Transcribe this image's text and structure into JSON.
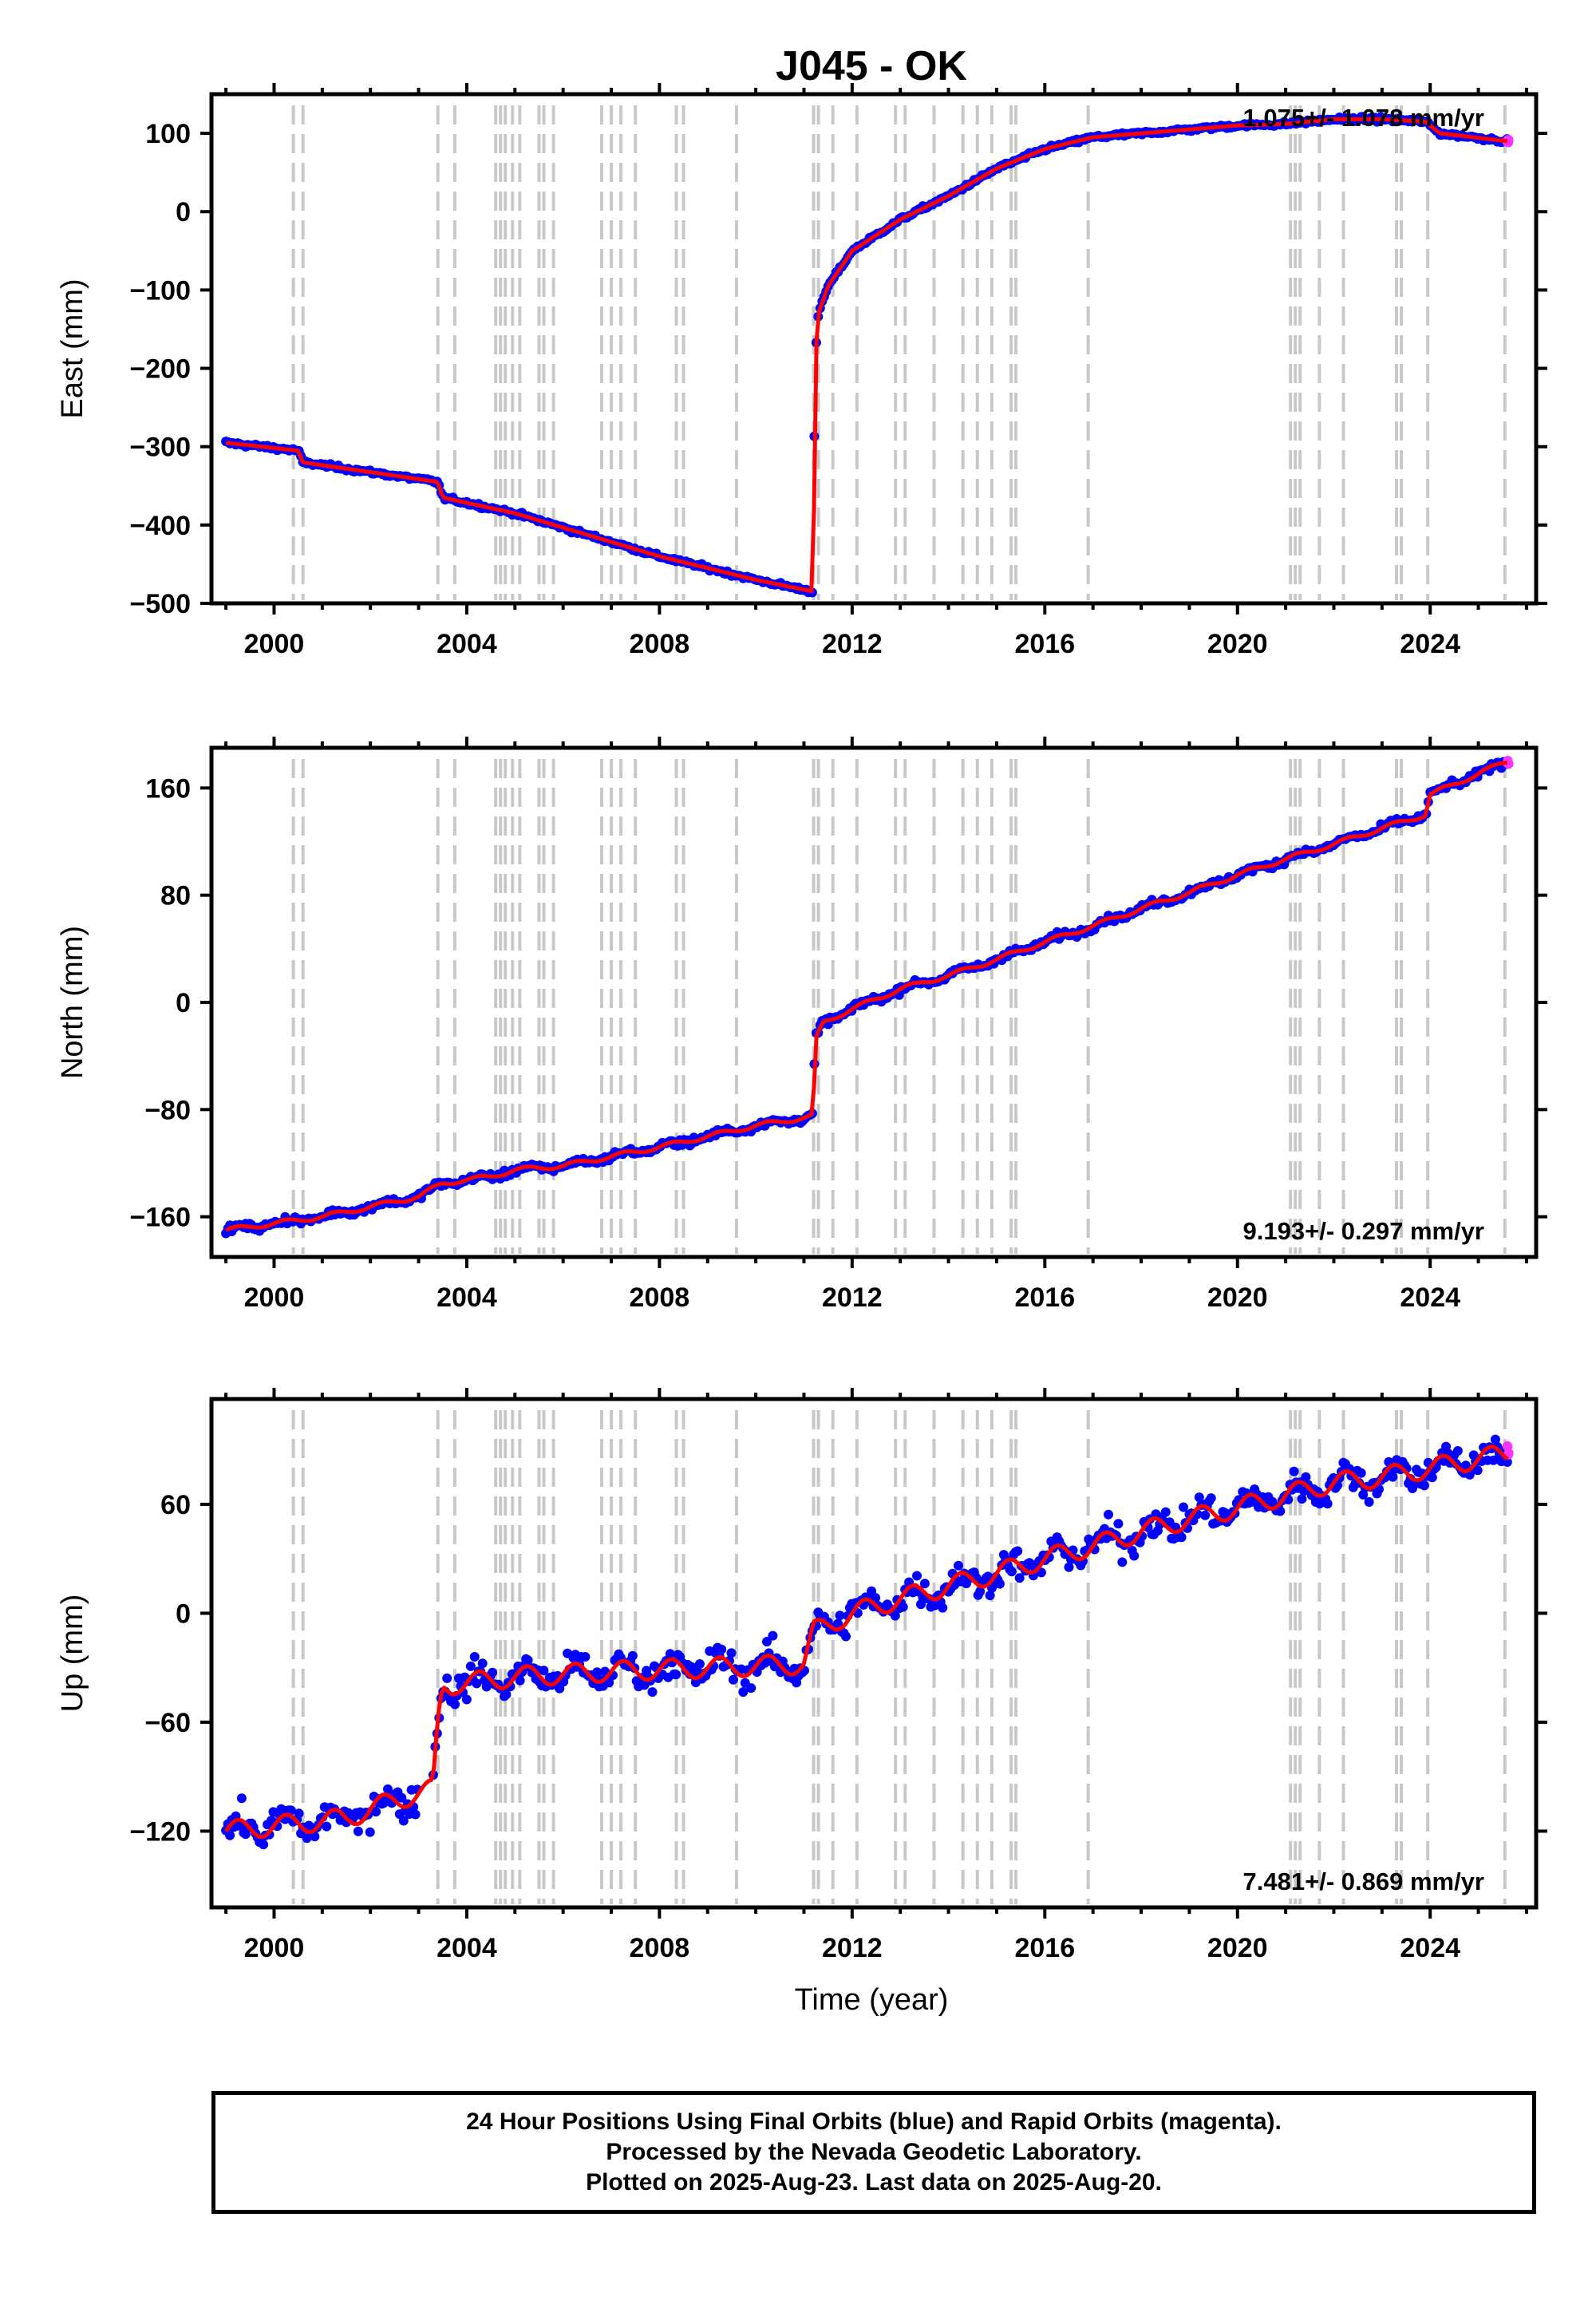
{
  "title": "J045 - OK",
  "xlabel": "Time (year)",
  "x_ticks": [
    2000,
    2004,
    2008,
    2012,
    2016,
    2020,
    2024
  ],
  "xlim": [
    1998.7,
    2026.2
  ],
  "colors": {
    "final": "#0000ff",
    "rapid": "#ff33ff",
    "model": "#ff0000",
    "steps": "#c8c8c8"
  },
  "step_epochs": [
    2000.4,
    2000.6,
    2003.4,
    2003.75,
    2004.6,
    2004.7,
    2004.8,
    2004.95,
    2005.1,
    2005.5,
    2005.6,
    2005.8,
    2006.8,
    2007.0,
    2007.2,
    2007.5,
    2008.35,
    2008.5,
    2009.6,
    2011.2,
    2011.3,
    2011.6,
    2012.1,
    2012.9,
    2013.1,
    2013.7,
    2014.3,
    2014.6,
    2014.9,
    2015.3,
    2015.4,
    2016.9,
    2021.1,
    2021.2,
    2021.3,
    2021.7,
    2022.2,
    2023.3,
    2023.4,
    2023.95,
    2025.55
  ],
  "chart_data": [
    {
      "type": "scatter",
      "component": "east",
      "ylabel": "East (mm)",
      "ylim": [
        -500,
        150
      ],
      "y_ticks": [
        -500,
        -400,
        -300,
        -200,
        -100,
        0,
        100
      ],
      "rate_text": "1.075+/- 1.078 mm/yr",
      "rate_position": "top-right",
      "series": [
        {
          "x": [
            1999.0,
            2000.5,
            2000.6,
            2003.4,
            2003.5,
            2005.0,
            2008.0,
            2010.0,
            2011.2,
            2011.22,
            2011.3,
            2011.5,
            2012.0,
            2013.0,
            2014.0,
            2015.0,
            2016.0,
            2017.0,
            2018.0,
            2019.0,
            2020.0,
            2021.0,
            2022.0,
            2023.0,
            2023.9,
            2024.2,
            2025.6
          ],
          "y": [
            -295,
            -305,
            -320,
            -345,
            -365,
            -385,
            -440,
            -470,
            -485,
            -200,
            -130,
            -95,
            -50,
            -10,
            20,
            55,
            80,
            95,
            100,
            105,
            110,
            112,
            118,
            118,
            115,
            100,
            90
          ]
        }
      ]
    },
    {
      "type": "scatter",
      "component": "north",
      "ylabel": "North (mm)",
      "ylim": [
        -190,
        190
      ],
      "y_ticks": [
        -160,
        -80,
        0,
        80,
        160
      ],
      "rate_text": "9.193+/- 0.297 mm/yr",
      "rate_position": "bottom-right",
      "series": [
        {
          "x": [
            1999.0,
            2001.0,
            2003.0,
            2003.5,
            2004.5,
            2005.0,
            2006.0,
            2007.0,
            2008.0,
            2009.0,
            2010.0,
            2011.2,
            2011.22,
            2011.4,
            2012.0,
            2013.0,
            2014.0,
            2015.0,
            2016.0,
            2017.0,
            2018.0,
            2019.0,
            2020.0,
            2021.0,
            2022.0,
            2023.0,
            2023.9,
            2024.0,
            2025.6
          ],
          "y": [
            -170,
            -160,
            -145,
            -135,
            -130,
            -125,
            -122,
            -115,
            -108,
            -100,
            -92,
            -85,
            -30,
            -15,
            -5,
            10,
            20,
            32,
            45,
            57,
            70,
            82,
            95,
            107,
            118,
            130,
            140,
            155,
            180
          ]
        }
      ]
    },
    {
      "type": "scatter",
      "component": "up",
      "ylabel": "Up (mm)",
      "ylim": [
        -162,
        118
      ],
      "y_ticks": [
        -120,
        -60,
        0,
        60
      ],
      "rate_text": "7.481+/- 0.869 mm/yr",
      "rate_position": "bottom-right",
      "series": [
        {
          "x": [
            1999.0,
            2000.0,
            2001.5,
            2002.5,
            2003.3,
            2003.4,
            2003.5,
            2005.0,
            2007.0,
            2009.0,
            2011.0,
            2011.2,
            2012.0,
            2013.0,
            2014.0,
            2015.0,
            2016.0,
            2017.0,
            2018.0,
            2019.0,
            2020.0,
            2021.0,
            2022.0,
            2023.0,
            2024.0,
            2025.0,
            2025.6
          ],
          "y": [
            -120,
            -117,
            -113,
            -103,
            -97,
            -60,
            -40,
            -35,
            -32,
            -30,
            -28,
            -10,
            0,
            8,
            15,
            22,
            30,
            37,
            45,
            52,
            58,
            65,
            72,
            75,
            80,
            85,
            88
          ]
        }
      ]
    }
  ],
  "footer": {
    "line1": "24 Hour Positions Using Final Orbits (blue) and Rapid Orbits (magenta).",
    "line2": "Processed by the Nevada Geodetic Laboratory.",
    "line3": "Plotted on 2025-Aug-23. Last data on 2025-Aug-20."
  }
}
